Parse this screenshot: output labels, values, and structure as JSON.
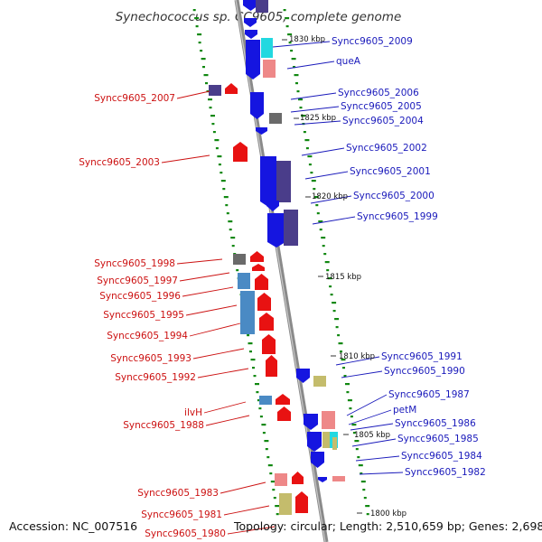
{
  "title": "Synechococcus sp. CC9605, complete genome",
  "footer": {
    "accession": "Accession: NC_007516",
    "topology": "Topology: circular; Length: 2,510,659 bp; Genes: 2,698"
  },
  "colors": {
    "forward": "#e81212",
    "reverse": "#1515e0",
    "purple": "#4a3d8a",
    "gray": "#6a6a6a",
    "lightblue": "#4a8ac4",
    "cyan": "#22d8e0",
    "pink": "#ee8888",
    "khaki": "#c4bc6c",
    "label_forward": "#cc1111",
    "label_reverse": "#1a1abb",
    "tick": "#118811",
    "axis": "#8a8a8a"
  },
  "kbp_markers": [
    "1830 kbp",
    "1825 kbp",
    "1820 kbp",
    "1815 kbp",
    "1810 kbp",
    "1805 kbp",
    "1800 kbp"
  ],
  "left_labels": [
    "Syncc9605_2007",
    "Syncc9605_2003",
    "Syncc9605_1998",
    "Syncc9605_1997",
    "Syncc9605_1996",
    "Syncc9605_1995",
    "Syncc9605_1994",
    "Syncc9605_1993",
    "Syncc9605_1992",
    "ilvH",
    "Syncc9605_1988",
    "Syncc9605_1983",
    "Syncc9605_1981",
    "Syncc9605_1980"
  ],
  "right_labels": [
    "Syncc9605_2009",
    "queA",
    "Syncc9605_2006",
    "Syncc9605_2005",
    "Syncc9605_2004",
    "Syncc9605_2002",
    "Syncc9605_2001",
    "Syncc9605_2000",
    "Syncc9605_1999",
    "Syncc9605_1991",
    "Syncc9605_1990",
    "Syncc9605_1987",
    "petM",
    "Syncc9605_1986",
    "Syncc9605_1985",
    "Syncc9605_1984",
    "Syncc9605_1982"
  ]
}
